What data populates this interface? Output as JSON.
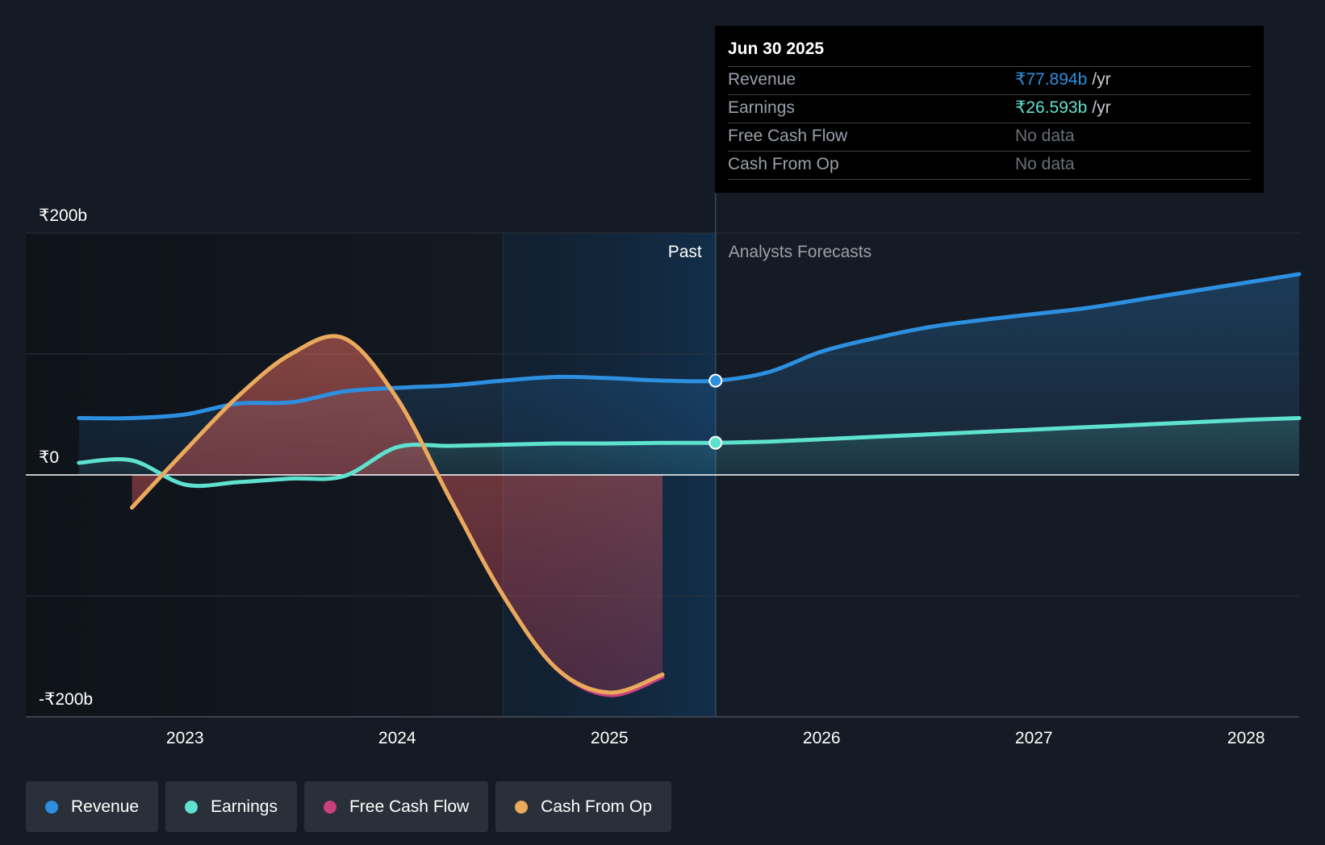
{
  "chart_data": {
    "type": "area",
    "y_tick_labels": [
      "₹200b",
      "₹0",
      "-₹200b"
    ],
    "ylim": [
      -200,
      200
    ],
    "y_unit": "₹b",
    "x_tick_labels": [
      "2023",
      "2024",
      "2025",
      "2026",
      "2027",
      "2028"
    ],
    "xlim": [
      2022.25,
      2028.25
    ],
    "divider_x": 2025.5,
    "divider_labels": {
      "past": "Past",
      "forecast": "Analysts Forecasts"
    },
    "highlight_range": [
      2024.5,
      2025.5
    ],
    "grid": true,
    "legend_position": "bottom-left",
    "series": [
      {
        "name": "Revenue",
        "color": "#2d8fe0",
        "points": [
          [
            2022.5,
            47
          ],
          [
            2022.75,
            47
          ],
          [
            2023.0,
            50
          ],
          [
            2023.25,
            59
          ],
          [
            2023.5,
            60
          ],
          [
            2023.75,
            69
          ],
          [
            2024.0,
            72
          ],
          [
            2024.25,
            74
          ],
          [
            2024.5,
            78
          ],
          [
            2024.75,
            81
          ],
          [
            2025.0,
            80
          ],
          [
            2025.25,
            78
          ],
          [
            2025.5,
            77.894
          ],
          [
            2025.75,
            85
          ],
          [
            2026.0,
            102
          ],
          [
            2026.25,
            113
          ],
          [
            2026.5,
            122
          ],
          [
            2026.75,
            128
          ],
          [
            2027.0,
            133
          ],
          [
            2027.25,
            138
          ],
          [
            2027.5,
            145
          ],
          [
            2027.75,
            152
          ],
          [
            2028.0,
            159
          ],
          [
            2028.25,
            166
          ]
        ]
      },
      {
        "name": "Earnings",
        "color": "#5ee2cf",
        "points": [
          [
            2022.5,
            10
          ],
          [
            2022.75,
            12
          ],
          [
            2023.0,
            -8
          ],
          [
            2023.25,
            -6
          ],
          [
            2023.5,
            -3
          ],
          [
            2023.75,
            -1
          ],
          [
            2024.0,
            23
          ],
          [
            2024.25,
            24
          ],
          [
            2024.5,
            25
          ],
          [
            2024.75,
            26
          ],
          [
            2025.0,
            26
          ],
          [
            2025.25,
            26.5
          ],
          [
            2025.5,
            26.593
          ],
          [
            2025.75,
            27.5
          ],
          [
            2026.0,
            29.5
          ],
          [
            2026.25,
            31.5
          ],
          [
            2026.5,
            33.5
          ],
          [
            2026.75,
            35.5
          ],
          [
            2027.0,
            37.5
          ],
          [
            2027.25,
            39.5
          ],
          [
            2027.5,
            41.5
          ],
          [
            2027.75,
            43.5
          ],
          [
            2028.0,
            45.5
          ],
          [
            2028.25,
            47
          ]
        ]
      },
      {
        "name": "Free Cash Flow",
        "color": "#c9407e",
        "points": [
          [
            2022.75,
            -27
          ],
          [
            2023.0,
            20
          ],
          [
            2023.25,
            65
          ],
          [
            2023.5,
            100
          ],
          [
            2023.75,
            113
          ],
          [
            2024.0,
            63
          ],
          [
            2024.25,
            -20
          ],
          [
            2024.5,
            -100
          ],
          [
            2024.75,
            -160
          ],
          [
            2025.0,
            -182
          ],
          [
            2025.25,
            -167
          ]
        ]
      },
      {
        "name": "Cash From Op",
        "color": "#e9aa5b",
        "points": [
          [
            2022.75,
            -27
          ],
          [
            2023.0,
            20
          ],
          [
            2023.25,
            65
          ],
          [
            2023.5,
            100
          ],
          [
            2023.75,
            113
          ],
          [
            2024.0,
            63
          ],
          [
            2024.25,
            -20
          ],
          [
            2024.5,
            -100
          ],
          [
            2024.75,
            -160
          ],
          [
            2025.0,
            -180
          ],
          [
            2025.25,
            -165
          ]
        ]
      }
    ]
  },
  "tooltip": {
    "date": "Jun 30 2025",
    "rows": [
      {
        "label": "Revenue",
        "value": "₹77.894b",
        "unit": "/yr",
        "color": "#2d8fe0"
      },
      {
        "label": "Earnings",
        "value": "₹26.593b",
        "unit": "/yr",
        "color": "#5ee2cf"
      },
      {
        "label": "Free Cash Flow",
        "value": "No data",
        "unit": "",
        "color": "#6b7079"
      },
      {
        "label": "Cash From Op",
        "value": "No data",
        "unit": "",
        "color": "#6b7079"
      }
    ]
  },
  "legend": [
    {
      "label": "Revenue",
      "color": "#2d8fe0"
    },
    {
      "label": "Earnings",
      "color": "#5ee2cf"
    },
    {
      "label": "Free Cash Flow",
      "color": "#c9407e"
    },
    {
      "label": "Cash From Op",
      "color": "#e9aa5b"
    }
  ]
}
